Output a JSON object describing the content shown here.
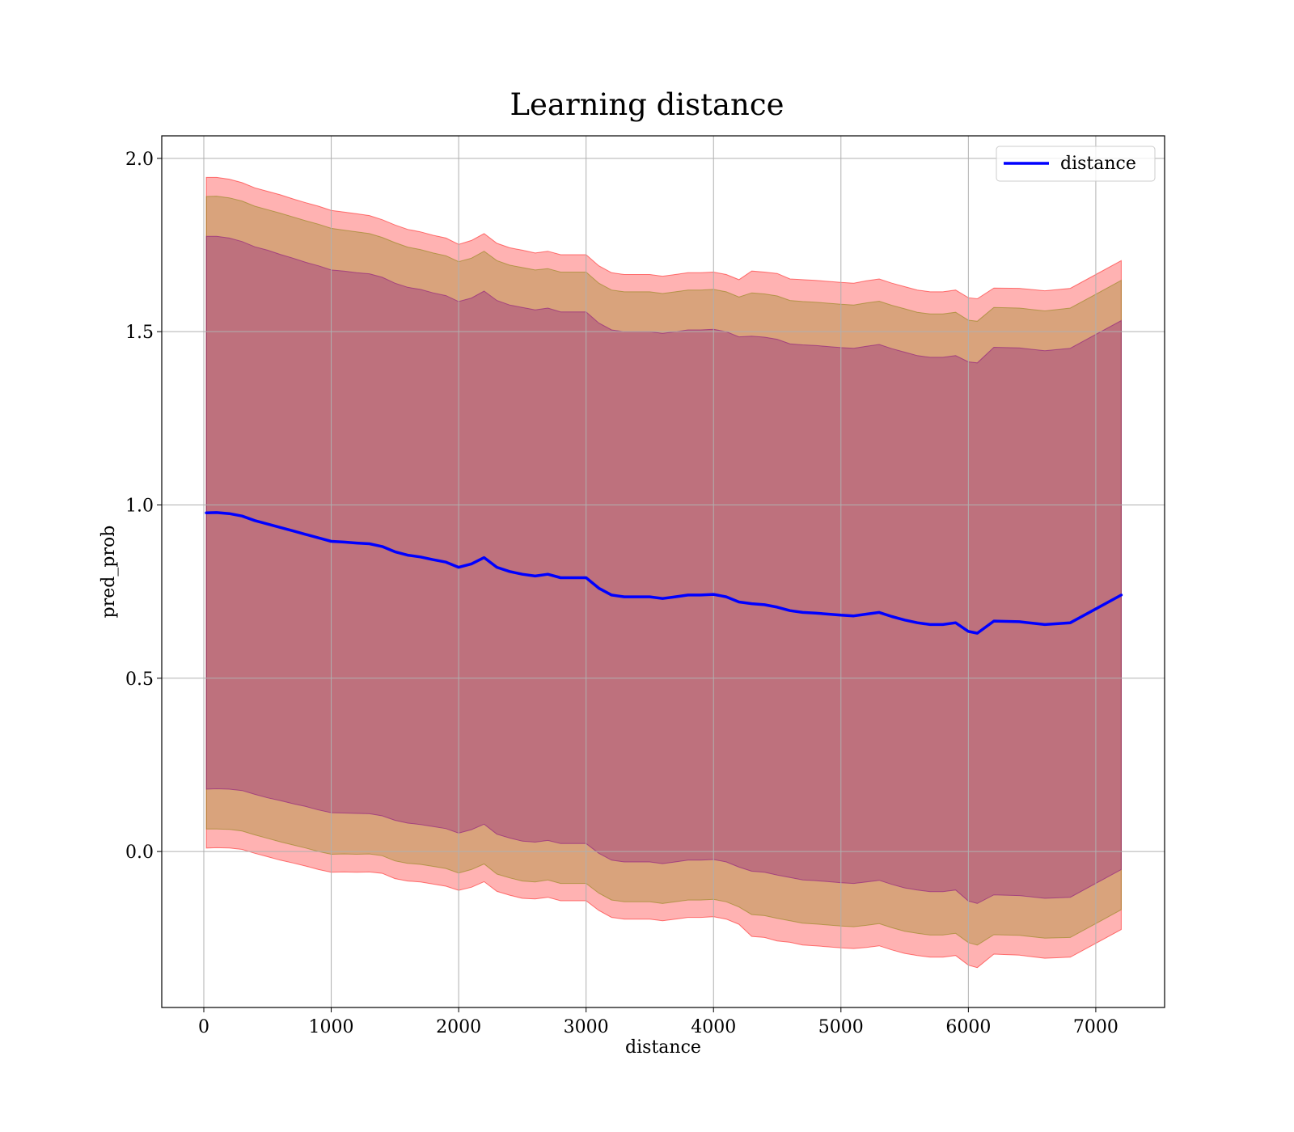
{
  "chart_data": {
    "type": "area",
    "title": "Learning distance",
    "xlabel": "distance",
    "ylabel": "pred_prob",
    "xlim": [
      -330,
      7540
    ],
    "ylim": [
      -0.45,
      2.065
    ],
    "xticks": [
      0,
      1000,
      2000,
      3000,
      4000,
      5000,
      6000,
      7000
    ],
    "xtick_labels": [
      "0",
      "1000",
      "2000",
      "3000",
      "4000",
      "5000",
      "6000",
      "7000"
    ],
    "yticks": [
      0.0,
      0.5,
      1.0,
      1.5,
      2.0
    ],
    "ytick_labels": [
      "0.0",
      "0.5",
      "1.0",
      "1.5",
      "2.0"
    ],
    "grid": true,
    "legend_position": "top-right",
    "x": [
      20,
      100,
      200,
      300,
      400,
      500,
      600,
      700,
      800,
      900,
      1000,
      1100,
      1200,
      1300,
      1400,
      1500,
      1600,
      1700,
      1800,
      1900,
      2000,
      2100,
      2200,
      2300,
      2400,
      2500,
      2600,
      2700,
      2800,
      2900,
      3000,
      3100,
      3200,
      3300,
      3400,
      3500,
      3600,
      3700,
      3800,
      3900,
      4000,
      4100,
      4200,
      4300,
      4400,
      4500,
      4600,
      4700,
      4800,
      4900,
      5000,
      5100,
      5200,
      5300,
      5400,
      5500,
      5600,
      5700,
      5800,
      5900,
      6000,
      6070,
      6200,
      6400,
      6600,
      6800,
      7000,
      7200
    ],
    "series": [
      {
        "name": "distance",
        "color": "#0000ff",
        "values": [
          0.977,
          0.978,
          0.975,
          0.968,
          0.955,
          0.945,
          0.935,
          0.925,
          0.915,
          0.905,
          0.895,
          0.893,
          0.89,
          0.888,
          0.88,
          0.865,
          0.855,
          0.85,
          0.842,
          0.835,
          0.82,
          0.83,
          0.848,
          0.82,
          0.808,
          0.8,
          0.795,
          0.8,
          0.79,
          0.79,
          0.79,
          0.76,
          0.74,
          0.735,
          0.735,
          0.735,
          0.73,
          0.735,
          0.74,
          0.74,
          0.742,
          0.735,
          0.72,
          0.715,
          0.712,
          0.705,
          0.695,
          0.69,
          0.688,
          0.685,
          0.682,
          0.68,
          0.685,
          0.69,
          0.678,
          0.668,
          0.66,
          0.655,
          0.655,
          0.66,
          0.635,
          0.63,
          0.665,
          0.663,
          0.655,
          0.66,
          0.7,
          0.74
        ]
      }
    ],
    "bands": [
      {
        "color": "#ff0000",
        "opacity": 0.3,
        "upper": [
          1.945,
          1.945,
          1.94,
          1.93,
          1.915,
          1.905,
          1.895,
          1.883,
          1.872,
          1.862,
          1.85,
          1.845,
          1.84,
          1.835,
          1.823,
          1.808,
          1.795,
          1.788,
          1.778,
          1.77,
          1.752,
          1.763,
          1.783,
          1.755,
          1.742,
          1.735,
          1.727,
          1.732,
          1.722,
          1.722,
          1.722,
          1.69,
          1.67,
          1.665,
          1.665,
          1.665,
          1.66,
          1.665,
          1.67,
          1.67,
          1.672,
          1.665,
          1.65,
          1.675,
          1.672,
          1.668,
          1.652,
          1.65,
          1.648,
          1.645,
          1.642,
          1.64,
          1.647,
          1.652,
          1.64,
          1.63,
          1.62,
          1.615,
          1.615,
          1.62,
          1.598,
          1.595,
          1.626,
          1.625,
          1.618,
          1.625,
          1.665,
          1.705
        ],
        "lower": [
          0.01,
          0.011,
          0.01,
          0.006,
          -0.005,
          -0.015,
          -0.025,
          -0.033,
          -0.042,
          -0.052,
          -0.06,
          -0.059,
          -0.06,
          -0.059,
          -0.063,
          -0.078,
          -0.085,
          -0.088,
          -0.094,
          -0.1,
          -0.112,
          -0.103,
          -0.087,
          -0.115,
          -0.126,
          -0.135,
          -0.137,
          -0.132,
          -0.142,
          -0.142,
          -0.142,
          -0.17,
          -0.19,
          -0.195,
          -0.195,
          -0.195,
          -0.2,
          -0.195,
          -0.19,
          -0.19,
          -0.188,
          -0.195,
          -0.21,
          -0.245,
          -0.248,
          -0.258,
          -0.262,
          -0.27,
          -0.272,
          -0.275,
          -0.278,
          -0.28,
          -0.277,
          -0.272,
          -0.284,
          -0.294,
          -0.3,
          -0.305,
          -0.305,
          -0.3,
          -0.328,
          -0.335,
          -0.296,
          -0.299,
          -0.308,
          -0.305,
          -0.265,
          -0.225
        ]
      },
      {
        "color": "#808000",
        "opacity": 0.3,
        "upper": [
          1.89,
          1.891,
          1.886,
          1.877,
          1.862,
          1.852,
          1.842,
          1.831,
          1.82,
          1.81,
          1.798,
          1.793,
          1.788,
          1.783,
          1.772,
          1.757,
          1.744,
          1.737,
          1.727,
          1.719,
          1.702,
          1.712,
          1.732,
          1.705,
          1.692,
          1.685,
          1.678,
          1.682,
          1.672,
          1.672,
          1.672,
          1.64,
          1.62,
          1.615,
          1.615,
          1.615,
          1.61,
          1.615,
          1.62,
          1.62,
          1.622,
          1.615,
          1.6,
          1.612,
          1.609,
          1.603,
          1.59,
          1.587,
          1.585,
          1.582,
          1.579,
          1.577,
          1.583,
          1.588,
          1.576,
          1.566,
          1.556,
          1.551,
          1.551,
          1.556,
          1.533,
          1.53,
          1.57,
          1.568,
          1.56,
          1.568,
          1.608,
          1.648
        ],
        "lower": [
          0.065,
          0.065,
          0.064,
          0.059,
          0.048,
          0.038,
          0.028,
          0.019,
          0.01,
          0.0,
          -0.008,
          -0.007,
          -0.008,
          -0.007,
          -0.012,
          -0.027,
          -0.034,
          -0.037,
          -0.043,
          -0.049,
          -0.062,
          -0.052,
          -0.036,
          -0.065,
          -0.076,
          -0.085,
          -0.088,
          -0.082,
          -0.092,
          -0.092,
          -0.092,
          -0.12,
          -0.14,
          -0.145,
          -0.145,
          -0.145,
          -0.15,
          -0.145,
          -0.14,
          -0.14,
          -0.138,
          -0.145,
          -0.16,
          -0.182,
          -0.185,
          -0.193,
          -0.2,
          -0.207,
          -0.209,
          -0.212,
          -0.215,
          -0.217,
          -0.213,
          -0.208,
          -0.22,
          -0.23,
          -0.236,
          -0.241,
          -0.241,
          -0.236,
          -0.263,
          -0.27,
          -0.24,
          -0.242,
          -0.25,
          -0.248,
          -0.208,
          -0.168
        ]
      },
      {
        "color": "#800080",
        "opacity": 0.3,
        "upper": [
          1.775,
          1.775,
          1.77,
          1.76,
          1.745,
          1.735,
          1.723,
          1.712,
          1.7,
          1.69,
          1.678,
          1.675,
          1.67,
          1.667,
          1.657,
          1.64,
          1.628,
          1.622,
          1.612,
          1.604,
          1.587,
          1.597,
          1.617,
          1.59,
          1.577,
          1.57,
          1.563,
          1.568,
          1.557,
          1.557,
          1.557,
          1.525,
          1.505,
          1.5,
          1.5,
          1.5,
          1.495,
          1.5,
          1.505,
          1.505,
          1.507,
          1.5,
          1.485,
          1.487,
          1.484,
          1.478,
          1.465,
          1.462,
          1.46,
          1.457,
          1.454,
          1.452,
          1.458,
          1.463,
          1.451,
          1.441,
          1.431,
          1.426,
          1.426,
          1.431,
          1.413,
          1.41,
          1.455,
          1.453,
          1.445,
          1.452,
          1.492,
          1.532
        ],
        "lower": [
          0.18,
          0.181,
          0.18,
          0.176,
          0.165,
          0.155,
          0.147,
          0.138,
          0.13,
          0.12,
          0.112,
          0.111,
          0.11,
          0.109,
          0.103,
          0.09,
          0.082,
          0.078,
          0.072,
          0.066,
          0.053,
          0.063,
          0.079,
          0.05,
          0.039,
          0.03,
          0.027,
          0.032,
          0.023,
          0.023,
          0.023,
          -0.005,
          -0.025,
          -0.03,
          -0.03,
          -0.03,
          -0.035,
          -0.03,
          -0.025,
          -0.025,
          -0.023,
          -0.03,
          -0.045,
          -0.057,
          -0.06,
          -0.068,
          -0.075,
          -0.082,
          -0.084,
          -0.087,
          -0.09,
          -0.092,
          -0.088,
          -0.083,
          -0.095,
          -0.105,
          -0.111,
          -0.116,
          -0.116,
          -0.111,
          -0.143,
          -0.15,
          -0.125,
          -0.127,
          -0.135,
          -0.132,
          -0.092,
          -0.052
        ]
      }
    ]
  }
}
